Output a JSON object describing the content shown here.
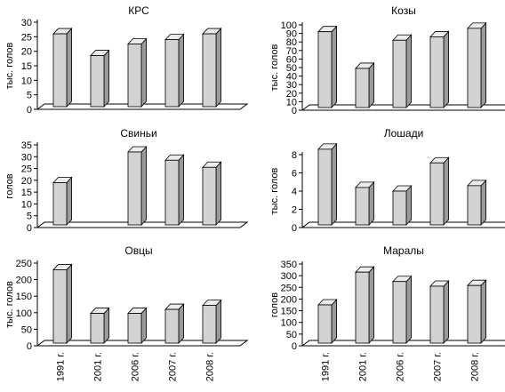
{
  "categories": [
    "1991 г.",
    "2001 г.",
    "2006 г.",
    "2007 г.",
    "2008 г."
  ],
  "colors": {
    "bar_front": "#d3d3d3",
    "bar_top": "#ececec",
    "bar_side": "#9a9a9a",
    "axis": "#000000"
  },
  "chart_data": [
    {
      "type": "bar",
      "title": "КРС",
      "ylabel": "тыс. голов",
      "ylim": [
        0,
        30
      ],
      "yticks": [
        0,
        5,
        10,
        15,
        20,
        25,
        30
      ],
      "categories": [
        "1991 г.",
        "2001 г.",
        "2006 г.",
        "2007 г.",
        "2008 г."
      ],
      "values": [
        26,
        18.5,
        22.5,
        24,
        26
      ]
    },
    {
      "type": "bar",
      "title": "Козы",
      "ylabel": "тыс. голов",
      "ylim": [
        0,
        100
      ],
      "yticks": [
        0,
        10,
        20,
        30,
        40,
        50,
        60,
        70,
        80,
        90,
        100
      ],
      "categories": [
        "1991 г.",
        "2001 г.",
        "2006 г.",
        "2007 г.",
        "2008 г."
      ],
      "values": [
        92,
        49,
        82,
        86,
        96
      ]
    },
    {
      "type": "bar",
      "title": "Свиньи",
      "ylabel": "голов",
      "ylim": [
        0,
        35
      ],
      "yticks": [
        0,
        5,
        10,
        15,
        20,
        25,
        30,
        35
      ],
      "categories": [
        "1991 г.",
        "2001 г.",
        "2006 г.",
        "2007 г.",
        "2008 г."
      ],
      "values": [
        19,
        0,
        32,
        28.5,
        25.5
      ]
    },
    {
      "type": "bar",
      "title": "Лошади",
      "ylabel": "тыс. голов",
      "ylim": [
        0,
        8
      ],
      "yticks": [
        0,
        2,
        4,
        6,
        8
      ],
      "categories": [
        "1991 г.",
        "2001 г.",
        "2006 г.",
        "2007 г.",
        "2008 г."
      ],
      "values": [
        8.6,
        4.4,
        4,
        7.1,
        4.6
      ]
    },
    {
      "type": "bar",
      "title": "Овцы",
      "ylabel": "тыс. голов",
      "ylim": [
        0,
        250
      ],
      "yticks": [
        0,
        50,
        100,
        150,
        200,
        250
      ],
      "categories": [
        "1991 г.",
        "2001 г.",
        "2006 г.",
        "2007 г.",
        "2008 г."
      ],
      "values": [
        230,
        98,
        98,
        110,
        122
      ]
    },
    {
      "type": "bar",
      "title": "Маралы",
      "ylabel": "голов",
      "ylim": [
        0,
        350
      ],
      "yticks": [
        0,
        50,
        100,
        150,
        200,
        250,
        300,
        350
      ],
      "categories": [
        "1991 г.",
        "2001 г.",
        "2006 г.",
        "2007 г.",
        "2008 г."
      ],
      "values": [
        175,
        315,
        275,
        255,
        258
      ]
    }
  ]
}
